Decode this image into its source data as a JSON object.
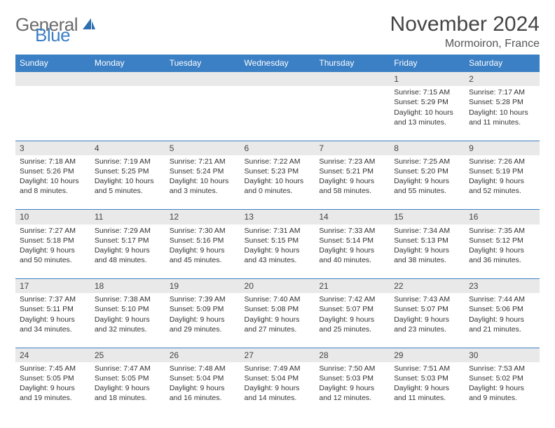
{
  "brand": {
    "part1": "General",
    "part2": "Blue"
  },
  "title": "November 2024",
  "location": "Mormoiron, France",
  "colors": {
    "header_bg": "#3b7fc4",
    "header_text": "#ffffff",
    "daynum_bg": "#e9e9e9",
    "border": "#3b7fc4",
    "body_text": "#333333",
    "brand_gray": "#6b6b6b",
    "brand_blue": "#3b7fc4"
  },
  "weekdays": [
    "Sunday",
    "Monday",
    "Tuesday",
    "Wednesday",
    "Thursday",
    "Friday",
    "Saturday"
  ],
  "weeks": [
    [
      null,
      null,
      null,
      null,
      null,
      {
        "n": "1",
        "sr": "Sunrise: 7:15 AM",
        "ss": "Sunset: 5:29 PM",
        "d1": "Daylight: 10 hours",
        "d2": "and 13 minutes."
      },
      {
        "n": "2",
        "sr": "Sunrise: 7:17 AM",
        "ss": "Sunset: 5:28 PM",
        "d1": "Daylight: 10 hours",
        "d2": "and 11 minutes."
      }
    ],
    [
      {
        "n": "3",
        "sr": "Sunrise: 7:18 AM",
        "ss": "Sunset: 5:26 PM",
        "d1": "Daylight: 10 hours",
        "d2": "and 8 minutes."
      },
      {
        "n": "4",
        "sr": "Sunrise: 7:19 AM",
        "ss": "Sunset: 5:25 PM",
        "d1": "Daylight: 10 hours",
        "d2": "and 5 minutes."
      },
      {
        "n": "5",
        "sr": "Sunrise: 7:21 AM",
        "ss": "Sunset: 5:24 PM",
        "d1": "Daylight: 10 hours",
        "d2": "and 3 minutes."
      },
      {
        "n": "6",
        "sr": "Sunrise: 7:22 AM",
        "ss": "Sunset: 5:23 PM",
        "d1": "Daylight: 10 hours",
        "d2": "and 0 minutes."
      },
      {
        "n": "7",
        "sr": "Sunrise: 7:23 AM",
        "ss": "Sunset: 5:21 PM",
        "d1": "Daylight: 9 hours",
        "d2": "and 58 minutes."
      },
      {
        "n": "8",
        "sr": "Sunrise: 7:25 AM",
        "ss": "Sunset: 5:20 PM",
        "d1": "Daylight: 9 hours",
        "d2": "and 55 minutes."
      },
      {
        "n": "9",
        "sr": "Sunrise: 7:26 AM",
        "ss": "Sunset: 5:19 PM",
        "d1": "Daylight: 9 hours",
        "d2": "and 52 minutes."
      }
    ],
    [
      {
        "n": "10",
        "sr": "Sunrise: 7:27 AM",
        "ss": "Sunset: 5:18 PM",
        "d1": "Daylight: 9 hours",
        "d2": "and 50 minutes."
      },
      {
        "n": "11",
        "sr": "Sunrise: 7:29 AM",
        "ss": "Sunset: 5:17 PM",
        "d1": "Daylight: 9 hours",
        "d2": "and 48 minutes."
      },
      {
        "n": "12",
        "sr": "Sunrise: 7:30 AM",
        "ss": "Sunset: 5:16 PM",
        "d1": "Daylight: 9 hours",
        "d2": "and 45 minutes."
      },
      {
        "n": "13",
        "sr": "Sunrise: 7:31 AM",
        "ss": "Sunset: 5:15 PM",
        "d1": "Daylight: 9 hours",
        "d2": "and 43 minutes."
      },
      {
        "n": "14",
        "sr": "Sunrise: 7:33 AM",
        "ss": "Sunset: 5:14 PM",
        "d1": "Daylight: 9 hours",
        "d2": "and 40 minutes."
      },
      {
        "n": "15",
        "sr": "Sunrise: 7:34 AM",
        "ss": "Sunset: 5:13 PM",
        "d1": "Daylight: 9 hours",
        "d2": "and 38 minutes."
      },
      {
        "n": "16",
        "sr": "Sunrise: 7:35 AM",
        "ss": "Sunset: 5:12 PM",
        "d1": "Daylight: 9 hours",
        "d2": "and 36 minutes."
      }
    ],
    [
      {
        "n": "17",
        "sr": "Sunrise: 7:37 AM",
        "ss": "Sunset: 5:11 PM",
        "d1": "Daylight: 9 hours",
        "d2": "and 34 minutes."
      },
      {
        "n": "18",
        "sr": "Sunrise: 7:38 AM",
        "ss": "Sunset: 5:10 PM",
        "d1": "Daylight: 9 hours",
        "d2": "and 32 minutes."
      },
      {
        "n": "19",
        "sr": "Sunrise: 7:39 AM",
        "ss": "Sunset: 5:09 PM",
        "d1": "Daylight: 9 hours",
        "d2": "and 29 minutes."
      },
      {
        "n": "20",
        "sr": "Sunrise: 7:40 AM",
        "ss": "Sunset: 5:08 PM",
        "d1": "Daylight: 9 hours",
        "d2": "and 27 minutes."
      },
      {
        "n": "21",
        "sr": "Sunrise: 7:42 AM",
        "ss": "Sunset: 5:07 PM",
        "d1": "Daylight: 9 hours",
        "d2": "and 25 minutes."
      },
      {
        "n": "22",
        "sr": "Sunrise: 7:43 AM",
        "ss": "Sunset: 5:07 PM",
        "d1": "Daylight: 9 hours",
        "d2": "and 23 minutes."
      },
      {
        "n": "23",
        "sr": "Sunrise: 7:44 AM",
        "ss": "Sunset: 5:06 PM",
        "d1": "Daylight: 9 hours",
        "d2": "and 21 minutes."
      }
    ],
    [
      {
        "n": "24",
        "sr": "Sunrise: 7:45 AM",
        "ss": "Sunset: 5:05 PM",
        "d1": "Daylight: 9 hours",
        "d2": "and 19 minutes."
      },
      {
        "n": "25",
        "sr": "Sunrise: 7:47 AM",
        "ss": "Sunset: 5:05 PM",
        "d1": "Daylight: 9 hours",
        "d2": "and 18 minutes."
      },
      {
        "n": "26",
        "sr": "Sunrise: 7:48 AM",
        "ss": "Sunset: 5:04 PM",
        "d1": "Daylight: 9 hours",
        "d2": "and 16 minutes."
      },
      {
        "n": "27",
        "sr": "Sunrise: 7:49 AM",
        "ss": "Sunset: 5:04 PM",
        "d1": "Daylight: 9 hours",
        "d2": "and 14 minutes."
      },
      {
        "n": "28",
        "sr": "Sunrise: 7:50 AM",
        "ss": "Sunset: 5:03 PM",
        "d1": "Daylight: 9 hours",
        "d2": "and 12 minutes."
      },
      {
        "n": "29",
        "sr": "Sunrise: 7:51 AM",
        "ss": "Sunset: 5:03 PM",
        "d1": "Daylight: 9 hours",
        "d2": "and 11 minutes."
      },
      {
        "n": "30",
        "sr": "Sunrise: 7:53 AM",
        "ss": "Sunset: 5:02 PM",
        "d1": "Daylight: 9 hours",
        "d2": "and 9 minutes."
      }
    ]
  ]
}
